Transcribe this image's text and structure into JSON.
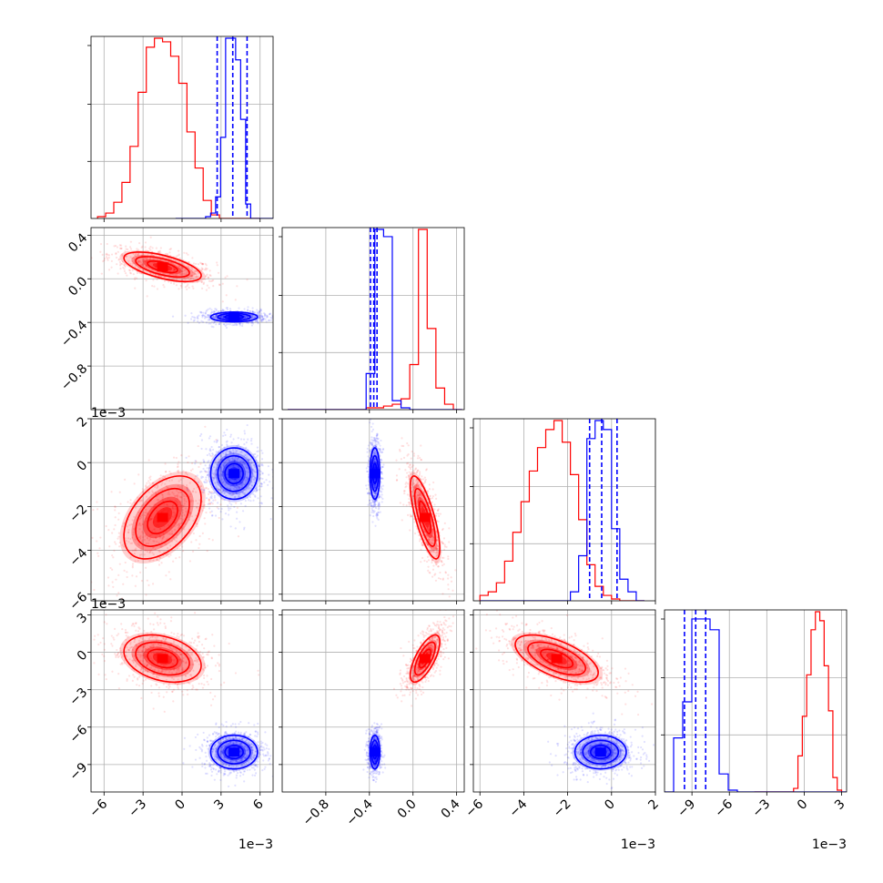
{
  "chart_data": {
    "type": "corner",
    "title": "",
    "colors": {
      "red_series": "#ff0000",
      "blue_series": "#0000ff",
      "grid": "#b0b0b0",
      "axes": "#000000"
    },
    "grid": true,
    "parameters": [
      {
        "index": 0,
        "range": [
          -7.0,
          7.0
        ],
        "ticks": [
          -6,
          -3,
          0,
          3,
          6
        ],
        "tick_labels": [
          "−6",
          "−3",
          "0",
          "3",
          "6"
        ],
        "offset_label": "1e−3"
      },
      {
        "index": 1,
        "range": [
          -1.2,
          0.47
        ],
        "ticks": [
          -0.8,
          -0.4,
          0.0,
          0.4
        ],
        "tick_labels": [
          "−0.8",
          "−0.4",
          "0.0",
          "0.4"
        ],
        "offset_label": ""
      },
      {
        "index": 2,
        "range": [
          -6.3,
          2.0
        ],
        "ticks": [
          -6,
          -4,
          -2,
          0,
          2
        ],
        "tick_labels": [
          "−6",
          "−4",
          "−2",
          "0",
          "2"
        ],
        "offset_label": "1e−3"
      },
      {
        "index": 3,
        "range": [
          -11.2,
          3.4
        ],
        "ticks": [
          -9,
          -6,
          -3,
          0,
          3
        ],
        "tick_labels": [
          "−9",
          "−6",
          "−3",
          "0",
          "3"
        ],
        "offset_label": "1e−3"
      }
    ],
    "series": [
      {
        "color": "red",
        "means": [
          -1.5,
          0.11,
          -2.5,
          -0.5
        ],
        "sigmas": [
          1.65,
          0.075,
          1.05,
          1.05
        ],
        "correlations": {
          "1_0": -0.6,
          "2_0": 0.45,
          "2_1": -0.75,
          "3_0": -0.3,
          "3_1": 0.7,
          "3_2": -0.6
        },
        "histograms": [
          {
            "edges_range": [
              -6.5,
              6.0
            ],
            "counts": [
              1,
              3,
              9,
              20,
              40,
              70,
              95,
              100,
              98,
              90,
              75,
              48,
              28,
              10,
              2,
              0,
              0,
              0,
              0,
              0
            ]
          },
          {
            "edges_range": [
              -1.15,
              0.45
            ],
            "counts": [
              0,
              0,
              0,
              0,
              0,
              0,
              0,
              0,
              0,
              1,
              1,
              2,
              3,
              6,
              25,
              100,
              45,
              12,
              3,
              0
            ]
          },
          {
            "edges_range": [
              -6.0,
              1.5
            ],
            "counts": [
              3,
              5,
              10,
              22,
              38,
              55,
              72,
              85,
              95,
              100,
              88,
              70,
              45,
              20,
              8,
              3,
              1,
              0,
              0,
              0
            ]
          },
          {
            "edges_range": [
              -4.0,
              3.0
            ],
            "counts": [
              0,
              0,
              0,
              0,
              0,
              0,
              0,
              0,
              0,
              2,
              20,
              42,
              65,
              90,
              100,
              95,
              70,
              45,
              8,
              1
            ]
          }
        ]
      },
      {
        "color": "blue",
        "means": [
          4.0,
          -0.35,
          -0.5,
          -8.0
        ],
        "sigmas": [
          1.0,
          0.025,
          0.65,
          0.75
        ],
        "correlations": {
          "1_0": 0.0,
          "2_0": 0.0,
          "2_1": 0.0,
          "3_0": 0.0,
          "3_1": 0.0,
          "3_2": 0.0
        },
        "quantiles": [
          [
            2.7,
            3.9,
            5.0
          ],
          [
            -0.39,
            -0.36,
            -0.33
          ],
          [
            -1.0,
            -0.45,
            0.25
          ],
          [
            -9.6,
            -8.7,
            -7.9
          ]
        ],
        "histograms": [
          {
            "edges_range": [
              -0.5,
              7.2
            ],
            "counts": [
              0,
              0,
              0,
              0,
              0,
              0,
              1,
              3,
              12,
              45,
              100,
              100,
              88,
              55,
              8,
              0,
              0,
              0,
              0,
              0
            ]
          },
          {
            "edges_range": [
              -1.15,
              0.45
            ],
            "counts": [
              0,
              0,
              0,
              0,
              0,
              0,
              0,
              0,
              0,
              20,
              100,
              96,
              5,
              1,
              0,
              0,
              0,
              0,
              0,
              0
            ]
          },
          {
            "edges_range": [
              -6.0,
              1.5
            ],
            "counts": [
              0,
              0,
              0,
              0,
              0,
              0,
              0,
              0,
              0,
              0,
              0,
              5,
              25,
              90,
              100,
              95,
              40,
              12,
              5,
              0
            ]
          },
          {
            "edges_range": [
              -11.2,
              3.4
            ],
            "counts": [
              0,
              30,
              50,
              96,
              96,
              90,
              10,
              1,
              0,
              0,
              0,
              0,
              0,
              0,
              0,
              0,
              0,
              0,
              0,
              0
            ]
          }
        ]
      }
    ]
  }
}
